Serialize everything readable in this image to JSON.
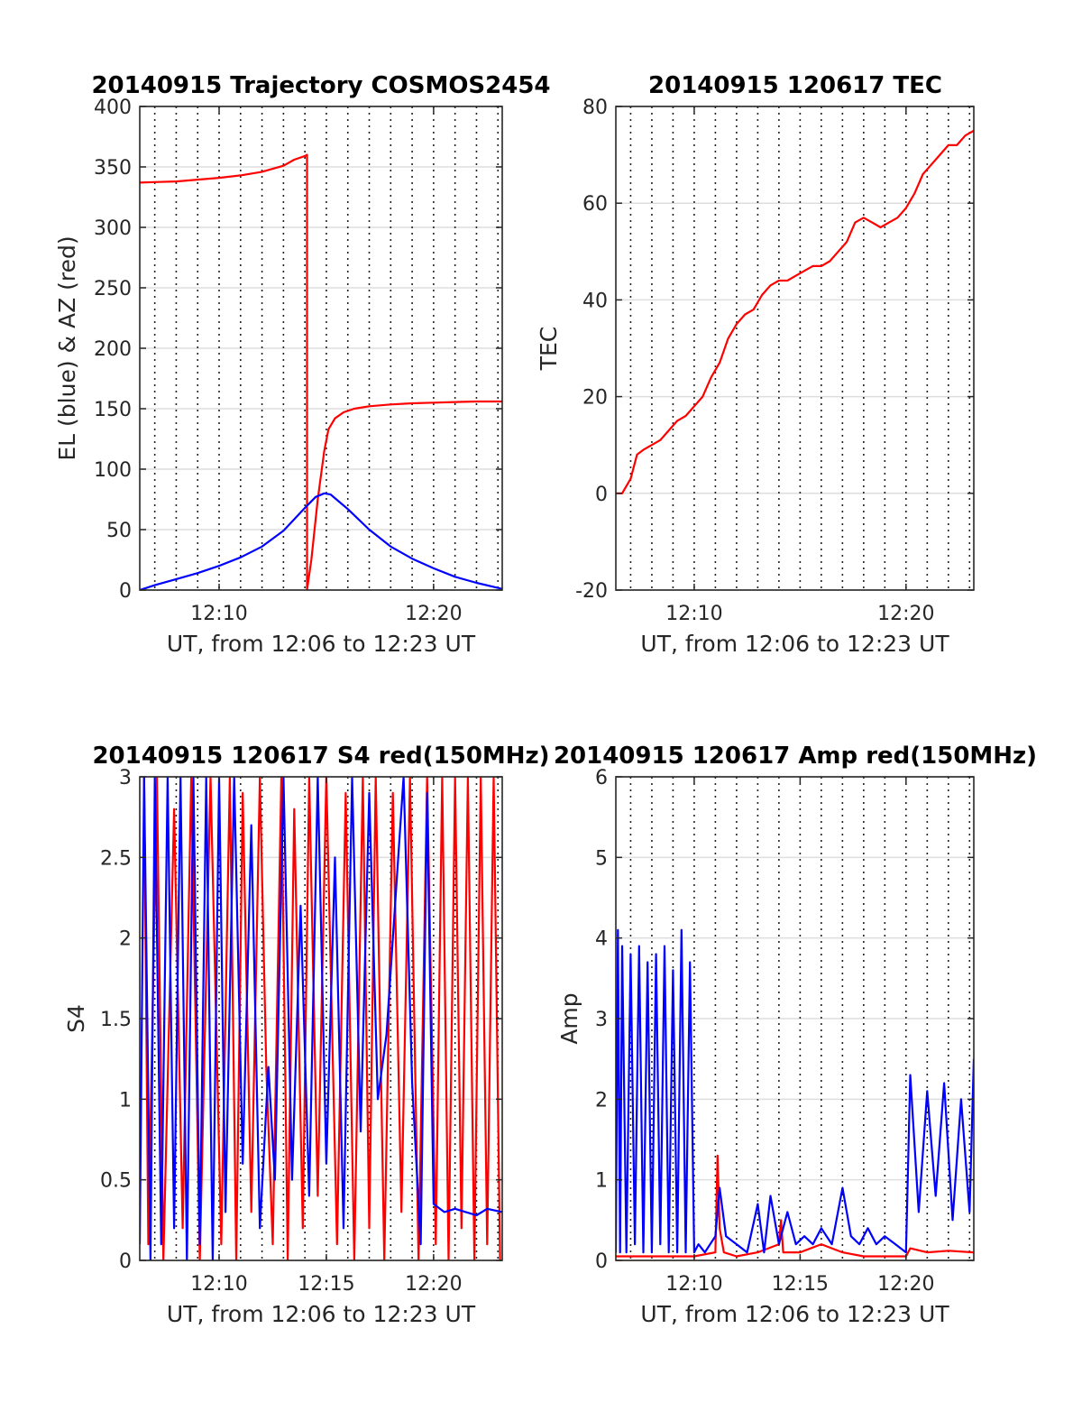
{
  "figure": {
    "background": "#ffffff",
    "line_colors": {
      "red": "#ff0000",
      "blue": "#0000ff"
    }
  },
  "chart_data": [
    {
      "type": "line",
      "title": "20140915 Trajectory COSMOS2454",
      "xlabel": "UT, from 12:06 to 12:23 UT",
      "ylabel": "EL (blue) & AZ (red)",
      "x_unit": "minutes after 12:00 UT",
      "xlim": [
        6.3,
        23.2
      ],
      "ylim": [
        0,
        400
      ],
      "xticks": [
        10,
        20
      ],
      "xtick_labels": [
        "12:10",
        "12:20"
      ],
      "yticks": [
        0,
        50,
        100,
        150,
        200,
        250,
        300,
        350,
        400
      ],
      "ytick_labels": [
        "0",
        "50",
        "100",
        "150",
        "200",
        "250",
        "300",
        "350",
        "400"
      ],
      "grid": "horizontal solid at y ticks, vertical dotted every 1 minute",
      "series": [
        {
          "color": "#ff0000",
          "x": [
            6.3,
            7,
            8,
            9,
            10,
            11,
            12,
            13,
            13.5,
            14,
            14.1,
            14.1,
            14.3,
            14.6,
            14.9,
            15.1,
            15.4,
            15.8,
            16.3,
            17,
            18,
            19,
            20,
            21,
            22,
            23.2
          ],
          "values": [
            337,
            337.5,
            338,
            339.5,
            341,
            343,
            346,
            351,
            356,
            359,
            360,
            0,
            25,
            75,
            115,
            133,
            142,
            147,
            150,
            152,
            153.5,
            154.5,
            155,
            155.5,
            156,
            156
          ]
        },
        {
          "color": "#0000ff",
          "x": [
            6.3,
            7,
            8,
            9,
            10,
            11,
            12,
            13,
            14,
            14.5,
            14.9,
            15.2,
            16,
            17,
            18,
            19,
            20,
            21,
            22,
            23.2
          ],
          "values": [
            0,
            4,
            9,
            14,
            20,
            27,
            36,
            49,
            68,
            77,
            80,
            79,
            67,
            50,
            36,
            26,
            18,
            11,
            6,
            1
          ]
        }
      ]
    },
    {
      "type": "line",
      "title": "20140915 120617 TEC",
      "xlabel": "UT, from 12:06 to 12:23 UT",
      "ylabel": "TEC",
      "x_unit": "minutes after 12:00 UT",
      "xlim": [
        6.3,
        23.2
      ],
      "ylim": [
        -20,
        80
      ],
      "xticks": [
        10,
        20
      ],
      "xtick_labels": [
        "12:10",
        "12:20"
      ],
      "yticks": [
        -20,
        0,
        20,
        40,
        60,
        80
      ],
      "ytick_labels": [
        "-20",
        "0",
        "20",
        "40",
        "60",
        "80"
      ],
      "grid": "horizontal solid at y ticks, vertical dotted every 1 minute",
      "series": [
        {
          "color": "#ff0000",
          "x": [
            6.3,
            6.6,
            7.0,
            7.3,
            7.6,
            8.0,
            8.4,
            8.8,
            9.2,
            9.6,
            10.0,
            10.4,
            10.8,
            11.2,
            11.6,
            12.0,
            12.4,
            12.8,
            13.2,
            13.6,
            14.0,
            14.4,
            14.8,
            15.2,
            15.6,
            16.0,
            16.4,
            16.8,
            17.2,
            17.6,
            18.0,
            18.4,
            18.8,
            19.2,
            19.6,
            20.0,
            20.4,
            20.8,
            21.2,
            21.6,
            22.0,
            22.4,
            22.8,
            23.2
          ],
          "values": [
            0,
            0,
            3,
            8,
            9,
            10,
            11,
            13,
            15,
            16,
            18,
            20,
            24,
            27,
            32,
            35,
            37,
            38,
            41,
            43,
            44,
            44,
            45,
            46,
            47,
            47,
            48,
            50,
            52,
            56,
            57,
            56,
            55,
            56,
            57,
            59,
            62,
            66,
            68,
            70,
            72,
            72,
            74,
            75
          ]
        }
      ]
    },
    {
      "type": "line",
      "title": "20140915 120617 S4 red(150MHz)",
      "xlabel": "UT, from 12:06 to 12:23 UT",
      "ylabel": "S4",
      "x_unit": "minutes after 12:00 UT",
      "xlim": [
        6.3,
        23.2
      ],
      "ylim": [
        0,
        3
      ],
      "xticks": [
        10,
        15,
        20
      ],
      "xtick_labels": [
        "12:10",
        "12:15",
        "12:20"
      ],
      "yticks": [
        0,
        0.5,
        1,
        1.5,
        2,
        2.5,
        3
      ],
      "ytick_labels": [
        "0",
        "0.5",
        "1",
        "1.5",
        "2",
        "2.5",
        "3"
      ],
      "grid": "horizontal solid at y ticks, vertical dotted every 1 minute",
      "series": [
        {
          "color": "#ff0000",
          "x": [
            6.5,
            6.7,
            7.1,
            7.4,
            7.9,
            8.3,
            8.7,
            9.1,
            9.6,
            10.1,
            10.5,
            10.8,
            11.1,
            11.5,
            11.9,
            12.2,
            12.5,
            12.9,
            13.2,
            13.5,
            13.9,
            14.2,
            14.6,
            15.0,
            15.5,
            15.9,
            16.3,
            16.7,
            17.0,
            17.3,
            17.7,
            18.1,
            18.5,
            18.9,
            19.3,
            19.7,
            20.1,
            20.4,
            20.7,
            21.0,
            21.3,
            21.6,
            21.9,
            22.2,
            22.5,
            22.8,
            23.1
          ],
          "values": [
            3,
            0.1,
            3,
            0,
            2.8,
            0.2,
            3,
            0,
            3,
            0.1,
            3,
            0,
            2.9,
            0.3,
            3,
            1.2,
            0.1,
            3,
            0,
            2.8,
            0.2,
            3,
            0.4,
            3,
            0.1,
            2.9,
            0,
            3,
            0.2,
            3,
            0,
            2.9,
            0.3,
            3,
            0,
            3,
            0.1,
            3,
            0,
            3,
            0.2,
            3,
            0,
            3,
            0.1,
            3,
            0
          ]
        },
        {
          "color": "#0000ff",
          "x": [
            6.3,
            6.5,
            6.8,
            7.0,
            7.3,
            7.6,
            7.9,
            8.2,
            8.5,
            8.8,
            9.1,
            9.4,
            9.7,
            10.0,
            10.3,
            10.7,
            11.1,
            11.5,
            11.9,
            12.3,
            12.6,
            13.0,
            13.4,
            13.8,
            14.2,
            14.6,
            15.0,
            15.4,
            15.8,
            16.2,
            16.6,
            17.0,
            17.4,
            17.8,
            18.2,
            18.6,
            19.0,
            19.4,
            19.7,
            20.0,
            20.5,
            21.0,
            21.5,
            22.0,
            22.5,
            23.2
          ],
          "values": [
            0.1,
            3,
            0,
            3,
            0.1,
            3,
            0.2,
            3,
            0,
            3,
            0.1,
            3,
            0,
            3,
            0.3,
            3,
            0.6,
            2.7,
            0.2,
            1.2,
            0.5,
            3,
            0.5,
            2.2,
            0.4,
            3,
            0.6,
            2.5,
            0.2,
            3,
            0.8,
            2.9,
            1.0,
            1.4,
            2.2,
            3,
            1.1,
            0.1,
            2.9,
            0.35,
            0.3,
            0.32,
            0.3,
            0.28,
            0.32,
            0.3
          ]
        }
      ]
    },
    {
      "type": "line",
      "title": "20140915 120617 Amp red(150MHz)",
      "xlabel": "UT, from 12:06 to 12:23 UT",
      "ylabel": "Amp",
      "x_unit": "minutes after 12:00 UT",
      "xlim": [
        6.3,
        23.2
      ],
      "ylim": [
        0,
        6
      ],
      "xticks": [
        10,
        15,
        20
      ],
      "xtick_labels": [
        "12:10",
        "12:15",
        "12:20"
      ],
      "yticks": [
        0,
        1,
        2,
        3,
        4,
        5,
        6
      ],
      "ytick_labels": [
        "0",
        "1",
        "2",
        "3",
        "4",
        "5",
        "6"
      ],
      "grid": "horizontal solid at y ticks, vertical dotted every 1 minute",
      "series": [
        {
          "color": "#ff0000",
          "x": [
            6.3,
            8,
            10,
            11.0,
            11.1,
            11.2,
            11.4,
            12,
            13,
            14.0,
            14.1,
            14.2,
            15,
            16,
            17,
            18,
            19,
            20,
            20.2,
            21,
            22,
            23.2
          ],
          "values": [
            0.05,
            0.05,
            0.05,
            0.1,
            1.3,
            0.4,
            0.1,
            0.05,
            0.1,
            0.2,
            0.5,
            0.1,
            0.1,
            0.2,
            0.1,
            0.05,
            0.05,
            0.05,
            0.15,
            0.1,
            0.12,
            0.1
          ]
        },
        {
          "color": "#0000ff",
          "x": [
            6.3,
            6.4,
            6.5,
            6.6,
            6.8,
            7.0,
            7.2,
            7.4,
            7.6,
            7.8,
            8.0,
            8.2,
            8.4,
            8.6,
            8.8,
            9.0,
            9.2,
            9.4,
            9.6,
            9.8,
            10.0,
            10.2,
            10.5,
            11.0,
            11.2,
            11.5,
            12.0,
            12.5,
            13.0,
            13.3,
            13.6,
            14.0,
            14.4,
            14.8,
            15.2,
            15.6,
            16.0,
            16.5,
            17.0,
            17.4,
            17.8,
            18.2,
            18.6,
            19.0,
            19.5,
            20.0,
            20.2,
            20.6,
            21.0,
            21.4,
            21.8,
            22.2,
            22.6,
            23.0,
            23.2
          ],
          "values": [
            0.1,
            4.1,
            0.1,
            3.9,
            0.1,
            3.8,
            0.2,
            3.9,
            0.1,
            3.7,
            0.1,
            3.8,
            0.2,
            3.9,
            0.1,
            3.6,
            0.1,
            4.1,
            0.1,
            3.7,
            0.1,
            0.2,
            0.1,
            0.3,
            0.9,
            0.3,
            0.2,
            0.1,
            0.7,
            0.1,
            0.8,
            0.2,
            0.6,
            0.2,
            0.3,
            0.2,
            0.4,
            0.2,
            0.9,
            0.3,
            0.2,
            0.4,
            0.2,
            0.3,
            0.2,
            0.1,
            2.3,
            0.6,
            2.1,
            0.8,
            2.2,
            0.5,
            2.0,
            0.6,
            2.5
          ]
        }
      ]
    }
  ]
}
